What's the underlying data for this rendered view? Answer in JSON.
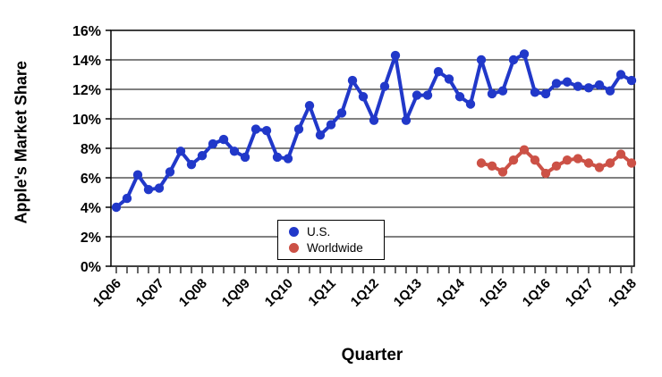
{
  "chart_data": {
    "type": "line",
    "title": "",
    "xlabel": "Quarter",
    "ylabel": "Apple's Market Share",
    "ylim": [
      0,
      16
    ],
    "ytick_step": 2,
    "ytick_labels": [
      "0%",
      "2%",
      "4%",
      "6%",
      "8%",
      "10%",
      "12%",
      "14%",
      "16%"
    ],
    "x_tick_labels": [
      "1Q06",
      "1Q07",
      "1Q08",
      "1Q09",
      "1Q10",
      "1Q11",
      "1Q12",
      "1Q13",
      "1Q14",
      "1Q15",
      "1Q16",
      "1Q17",
      "1Q18"
    ],
    "x_label_every": 4,
    "quarters_total": 49,
    "grid": true,
    "legend_position": "bottom-center-inside",
    "series": [
      {
        "name": "U.S.",
        "color": "#2138c9",
        "start_index": 0,
        "values": [
          4.0,
          4.6,
          6.2,
          5.2,
          5.3,
          6.4,
          7.8,
          6.9,
          7.5,
          8.3,
          8.6,
          7.8,
          7.4,
          9.3,
          9.2,
          7.4,
          7.3,
          9.3,
          10.9,
          8.9,
          9.6,
          10.4,
          12.6,
          11.5,
          9.9,
          12.2,
          14.3,
          9.9,
          11.6,
          11.6,
          13.2,
          12.7,
          11.5,
          11.0,
          14.0,
          11.7,
          11.9,
          14.0,
          14.4,
          11.8,
          11.7,
          12.4,
          12.5,
          12.2,
          12.1,
          12.3,
          11.9,
          13.0,
          12.6
        ]
      },
      {
        "name": "Worldwide",
        "color": "#cc5146",
        "start_index": 34,
        "values": [
          7.0,
          6.8,
          6.4,
          7.2,
          7.9,
          7.2,
          6.3,
          6.8,
          7.2,
          7.3,
          7.0,
          6.7,
          7.0,
          7.6,
          7.0
        ]
      }
    ]
  },
  "legend": {
    "items": [
      {
        "label": "U.S.",
        "color": "#2138c9"
      },
      {
        "label": "Worldwide",
        "color": "#cc5146"
      }
    ]
  },
  "axis": {
    "y_title": "Apple's Market Share",
    "x_title": "Quarter"
  }
}
